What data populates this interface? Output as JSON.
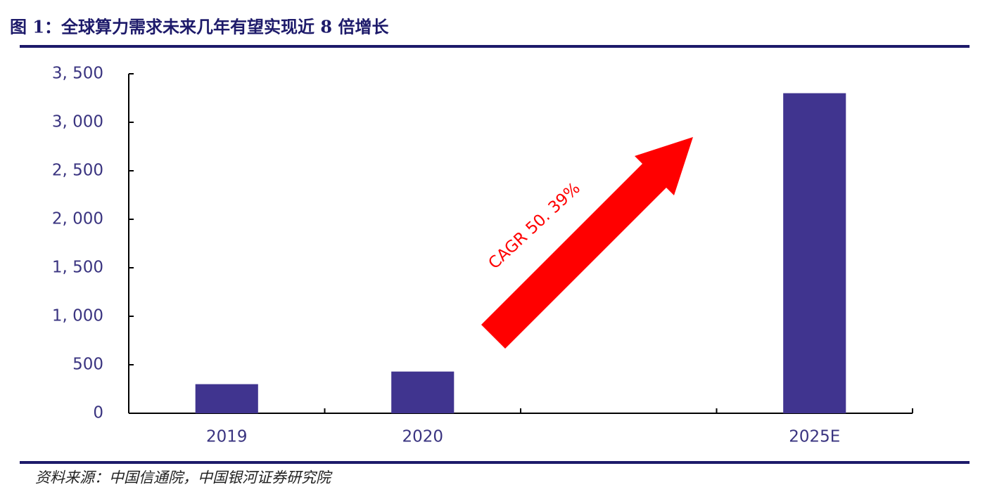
{
  "chart_data": {
    "type": "bar",
    "title": "图 1：全球算力需求未来几年有望实现近 8 倍增长",
    "categories": [
      "2019",
      "2020",
      null,
      "2025E"
    ],
    "values": [
      300,
      430,
      null,
      3300
    ],
    "color": "#40348f",
    "ylim": [
      0,
      3500
    ],
    "yticks": [
      0,
      500,
      {
        "value": 1000,
        "label": "1, 000"
      },
      {
        "value": 1500,
        "label": "1, 500"
      },
      {
        "value": 2000,
        "label": "2, 000"
      },
      {
        "value": 2500,
        "label": "2, 500"
      },
      {
        "value": 3000,
        "label": "3, 000"
      },
      {
        "value": 3500,
        "label": "3, 500"
      }
    ],
    "annotation": "CAGR 50. 39%",
    "source": "资料来源：中国信通院，中国银河证券研究院"
  }
}
